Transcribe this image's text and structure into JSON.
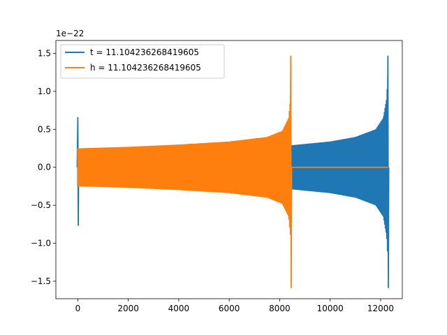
{
  "chart_data": {
    "type": "line",
    "title": "",
    "xlabel": "",
    "ylabel": "",
    "y_offset_text": "1e−22",
    "xlim": [
      -870,
      12860
    ],
    "ylim": [
      -1.73,
      1.67
    ],
    "x_ticks": [
      0,
      2000,
      4000,
      6000,
      8000,
      10000,
      12000
    ],
    "x_tick_labels": [
      "0",
      "2000",
      "4000",
      "6000",
      "8000",
      "10000",
      "12000"
    ],
    "y_ticks": [
      1.5,
      1.0,
      0.5,
      0.0,
      -0.5,
      -1.0,
      -1.5
    ],
    "y_tick_labels": [
      "1.5",
      "1.0",
      "0.5",
      "0.0",
      "−0.5",
      "−1.0",
      "−1.5"
    ],
    "grid": false,
    "legend_position": "top-left",
    "series": [
      {
        "name": "t = 11.104236268419605",
        "color": "#1f77b4",
        "description_points": {
          "spike_start": {
            "x": 0,
            "y_max": 0.66,
            "y_min": -0.77
          },
          "envelope": [
            {
              "x": 8450,
              "amp": 0.29
            },
            {
              "x": 10000,
              "amp": 0.34
            },
            {
              "x": 11000,
              "amp": 0.4
            },
            {
              "x": 11800,
              "amp": 0.5
            },
            {
              "x": 12100,
              "amp": 0.65
            },
            {
              "x": 12230,
              "amp": 0.9
            },
            {
              "x": 12280,
              "amp": 1.2
            }
          ],
          "spike_end": {
            "x": 12290,
            "y_max": 1.47,
            "y_min": -1.59
          },
          "end_x": 12300
        }
      },
      {
        "name": "h = 11.104236268419605",
        "color": "#ff7f0e",
        "description_points": {
          "envelope": [
            {
              "x": 0,
              "amp": 0.25
            },
            {
              "x": 2000,
              "amp": 0.27
            },
            {
              "x": 4000,
              "amp": 0.3
            },
            {
              "x": 6000,
              "amp": 0.34
            },
            {
              "x": 7500,
              "amp": 0.4
            },
            {
              "x": 8100,
              "amp": 0.48
            },
            {
              "x": 8350,
              "amp": 0.65
            },
            {
              "x": 8420,
              "amp": 0.9
            }
          ],
          "spike_end": {
            "x": 8440,
            "y_max": 1.47,
            "y_min": -1.59
          },
          "zero_line": {
            "x_start": 8450,
            "x_end": 12300,
            "y": 0.0
          }
        }
      }
    ]
  }
}
